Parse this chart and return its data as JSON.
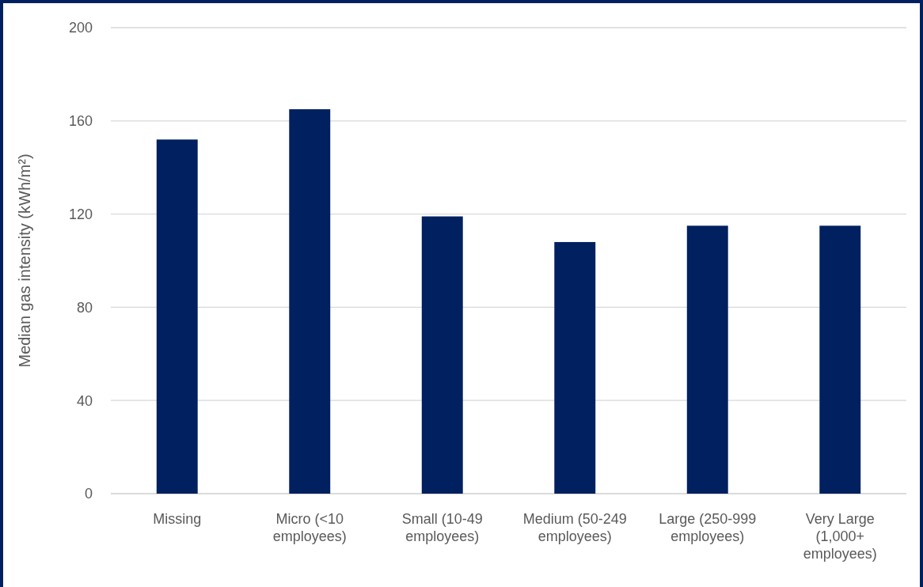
{
  "chart_data": {
    "type": "bar",
    "categories": [
      "Missing",
      "Micro (<10 employees)",
      "Small (10-49 employees)",
      "Medium (50-249 employees)",
      "Large (250-999 employees)",
      "Very Large (1,000+ employees)"
    ],
    "values": [
      152,
      165,
      119,
      108,
      115,
      115
    ],
    "color": "#002060",
    "ylabel": "Median gas intensity (kWh/m²)",
    "ylim": [
      0,
      200
    ],
    "yticks": [
      0,
      40,
      80,
      120,
      160,
      200
    ],
    "grid": "y"
  }
}
